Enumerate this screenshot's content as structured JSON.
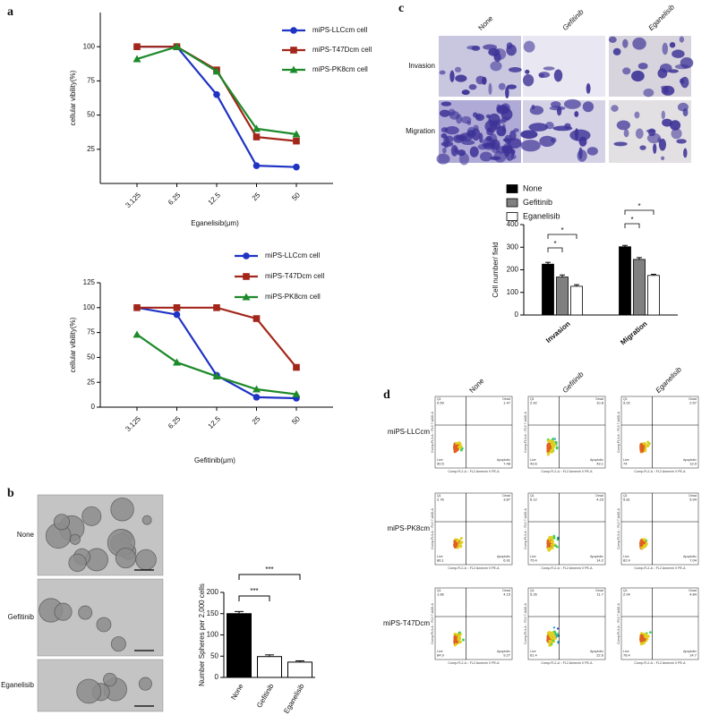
{
  "panel_labels": [
    "a",
    "b",
    "c",
    "d"
  ],
  "chart_data": [
    {
      "type": "line",
      "x_label": "Eganelisib(μm)",
      "y_label": "cellular vibility(%)",
      "categories": [
        "3.125",
        "6.25",
        "12.5",
        "25",
        "50"
      ],
      "series": [
        {
          "name": "miPS-LLCcm cell",
          "color": "#1f33c4",
          "marker": "circle",
          "values": [
            100,
            100,
            65,
            13,
            12
          ]
        },
        {
          "name": "miPS-T47Dcm cell",
          "color": "#a3261a",
          "marker": "square",
          "values": [
            100,
            100,
            83,
            34,
            31
          ]
        },
        {
          "name": "miPS-PK8cm cell",
          "color": "#1d8a2a",
          "marker": "triangle",
          "values": [
            91,
            100,
            82,
            40,
            36
          ]
        }
      ],
      "ylim": [
        0,
        125
      ],
      "yticks": [
        25,
        50,
        75,
        100
      ]
    },
    {
      "type": "line",
      "x_label": "Gefitinib(μm)",
      "y_label": "cellular vibility(%)",
      "categories": [
        "3.125",
        "6.25",
        "12.5",
        "25",
        "50"
      ],
      "series": [
        {
          "name": "miPS-LLCcm cell",
          "color": "#1f33c4",
          "marker": "circle",
          "values": [
            100,
            93,
            32,
            10,
            9
          ]
        },
        {
          "name": "miPS-T47Dcm cell",
          "color": "#a3261a",
          "marker": "square",
          "values": [
            100,
            100,
            100,
            89,
            40
          ]
        },
        {
          "name": "miPS-PK8cm cell",
          "color": "#1d8a2a",
          "marker": "triangle",
          "values": [
            73,
            45,
            31,
            18,
            13
          ]
        }
      ],
      "ylim": [
        0,
        125
      ],
      "yticks": [
        0,
        25,
        50,
        75,
        100,
        125
      ]
    },
    {
      "type": "bar",
      "y_label": "Number Spheres per 2,000 cells",
      "categories": [
        "None",
        "Gefitinib",
        "Eganelisib"
      ],
      "values": [
        150,
        49,
        36
      ],
      "errors": [
        5,
        4,
        3
      ],
      "colors": [
        "#000000",
        "#ffffff",
        "#ffffff"
      ],
      "ylim": [
        0,
        200
      ],
      "yticks": [
        0,
        50,
        100,
        150,
        200
      ],
      "annotations": [
        "***",
        "***"
      ]
    },
    {
      "type": "grouped_bar",
      "y_label": "Cell number/ field",
      "categories": [
        "Invasion",
        "Migration"
      ],
      "series": [
        {
          "name": "None",
          "color": "#000000",
          "values": [
            225,
            302
          ],
          "errors": [
            8,
            6
          ]
        },
        {
          "name": "Gefitinib",
          "color": "#808080",
          "values": [
            168,
            246
          ],
          "errors": [
            9,
            8
          ]
        },
        {
          "name": "Eganelisib",
          "color": "#ffffff",
          "values": [
            127,
            175
          ],
          "errors": [
            7,
            5
          ]
        }
      ],
      "ylim": [
        0,
        400
      ],
      "yticks": [
        0,
        100,
        200,
        300,
        400
      ],
      "annotations": [
        "*",
        "*",
        "*",
        "*"
      ]
    }
  ],
  "panel_b_images": {
    "labels": [
      "None",
      "Gefitinib",
      "Eganelisib"
    ]
  },
  "panel_c_images": {
    "columns": [
      "None",
      "Gefitinib",
      "Eganelisib"
    ],
    "rows": [
      "Invasion",
      "Migration"
    ]
  },
  "panel_d": {
    "columns": [
      "None",
      "Gefitinib",
      "Eganelisib"
    ],
    "rows": [
      "miPS-LLCcm",
      "miPS-PK8cm",
      "miPS-T47Dcm"
    ],
    "quadrant_names": [
      "Q1",
      "Dead",
      "Live",
      "Apoptotic"
    ],
    "x_axis_label": "Comp-FL2-A :: FL2 Annexin V PE-A",
    "y_axis_label": "Comp-FL3-A :: FL3 7-AAD-A",
    "plots": [
      [
        [
          0.59,
          1.47,
          90.5,
          7.48
        ],
        [
          2.42,
          10.8,
          43.6,
          43.1
        ],
        [
          9.02,
          2.57,
          74.0,
          13.9
        ]
      ],
      [
        [
          2.76,
          3.87,
          86.1,
          6.91
        ],
        [
          6.12,
          4.23,
          75.4,
          14.2
        ],
        [
          5.81,
          5.94,
          82.4,
          7.04
        ]
      ],
      [
        [
          1.66,
          4.15,
          84.9,
          9.27
        ],
        [
          5.26,
          11.7,
          61.4,
          22.6
        ],
        [
          2.04,
          4.84,
          78.4,
          14.7
        ]
      ]
    ]
  }
}
